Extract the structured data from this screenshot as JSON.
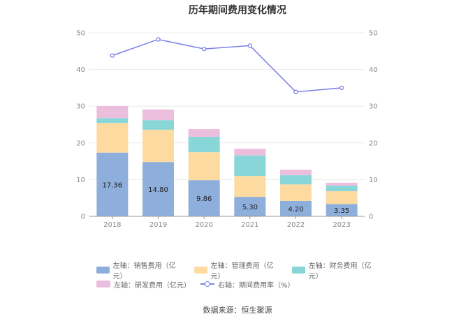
{
  "chart_data": {
    "type": "bar",
    "title": "历年期间费用变化情况",
    "categories": [
      "2018",
      "2019",
      "2020",
      "2021",
      "2022",
      "2023"
    ],
    "y_left": {
      "ylim": [
        0,
        50
      ],
      "ticks": [
        "0",
        "10",
        "20",
        "30",
        "40",
        "50"
      ]
    },
    "y_right": {
      "ylim": [
        0,
        50
      ],
      "ticks": [
        "0",
        "10",
        "20",
        "30",
        "40",
        "50"
      ]
    },
    "stacked": true,
    "series": [
      {
        "name": "左轴：销售费用（亿元）",
        "type": "bar",
        "color": "#8eaedc",
        "values": [
          17.36,
          14.8,
          9.86,
          5.3,
          4.2,
          3.35
        ],
        "labels": [
          "17.36",
          "14.80",
          "9.86",
          "5.30",
          "4.20",
          "3.35"
        ]
      },
      {
        "name": "左轴：管理费用（亿元）",
        "type": "bar",
        "color": "#fddba0",
        "values": [
          8.1,
          8.8,
          7.6,
          5.7,
          4.5,
          3.5
        ]
      },
      {
        "name": "左轴：财务费用（亿元）",
        "type": "bar",
        "color": "#88d6d8",
        "values": [
          1.3,
          2.6,
          4.2,
          5.6,
          2.5,
          1.5
        ]
      },
      {
        "name": "左轴：研发费用（亿元）",
        "type": "bar",
        "color": "#ecbedd",
        "values": [
          3.3,
          2.9,
          2.1,
          1.8,
          1.5,
          0.8
        ]
      },
      {
        "name": "右轴：期间费用率（%）",
        "type": "line",
        "color": "#7b7fe8",
        "axis": "right",
        "values": [
          43.8,
          48.2,
          45.6,
          46.5,
          33.9,
          35.0
        ]
      }
    ],
    "grid": true,
    "legend_position": "bottom"
  },
  "source": "数据来源：恒生聚源"
}
